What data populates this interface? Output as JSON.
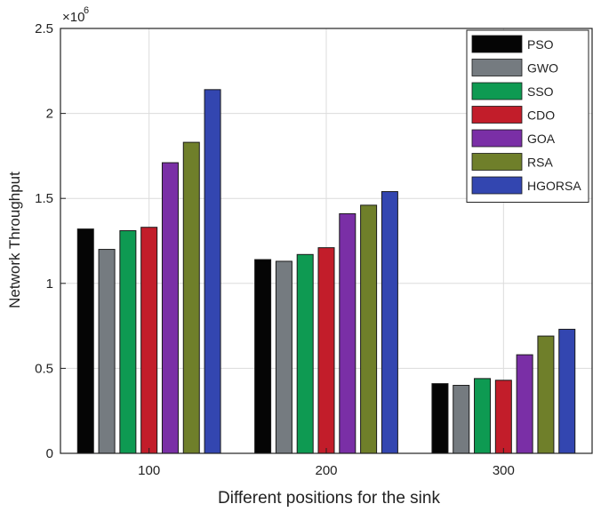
{
  "chart_data": {
    "type": "bar",
    "title": "",
    "xlabel": "Different positions for the sink",
    "ylabel": "Network Throughput",
    "y_multiplier_base": "×10",
    "y_multiplier_exp": "6",
    "categories": [
      "100",
      "200",
      "300"
    ],
    "ylim": [
      0,
      2.5
    ],
    "yticks": [
      0,
      0.5,
      1,
      1.5,
      2,
      2.5
    ],
    "ytick_labels": [
      "0",
      "0.5",
      "1",
      "1.5",
      "2",
      "2.5"
    ],
    "grid": true,
    "legend_position": "top-right",
    "series": [
      {
        "name": "PSO",
        "color": "#050505",
        "values": [
          1.32,
          1.14,
          0.41
        ]
      },
      {
        "name": "GWO",
        "color": "#757b80",
        "values": [
          1.2,
          1.13,
          0.4
        ]
      },
      {
        "name": "SSO",
        "color": "#0e9a52",
        "values": [
          1.31,
          1.17,
          0.44
        ]
      },
      {
        "name": "CDO",
        "color": "#c21d2a",
        "values": [
          1.33,
          1.21,
          0.43
        ]
      },
      {
        "name": "GOA",
        "color": "#7a2fa6",
        "values": [
          1.71,
          1.41,
          0.58
        ]
      },
      {
        "name": "RSA",
        "color": "#6f7f2a",
        "values": [
          1.83,
          1.46,
          0.69
        ]
      },
      {
        "name": "HGORSA",
        "color": "#3346b0",
        "values": [
          2.14,
          1.54,
          0.73
        ]
      }
    ]
  }
}
